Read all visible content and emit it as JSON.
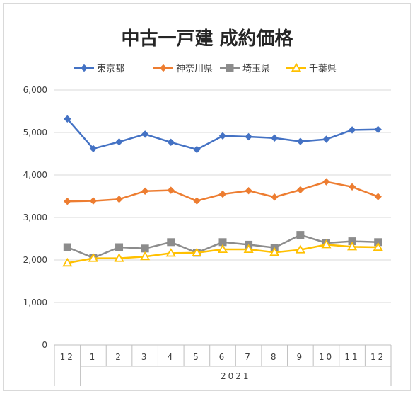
{
  "chart_data": {
    "type": "line",
    "title": "中古一戸建 成約価格",
    "xlabel": "",
    "ylabel": "",
    "categories": [
      "12",
      "1",
      "2",
      "3",
      "4",
      "5",
      "6",
      "7",
      "8",
      "9",
      "10",
      "11",
      "12"
    ],
    "year_group_label": "2021",
    "ylim": [
      0,
      6000
    ],
    "yticks": [
      "0",
      "1,000",
      "2,000",
      "3,000",
      "4,000",
      "5,000",
      "6,000"
    ],
    "ytick_values": [
      0,
      1000,
      2000,
      3000,
      4000,
      5000,
      6000
    ],
    "grid": "vertical",
    "legend_position": "top",
    "series": [
      {
        "name": "東京都",
        "color": "#4472C4",
        "marker": "diamond",
        "values": [
          5320,
          4620,
          4780,
          4960,
          4770,
          4600,
          4920,
          4900,
          4870,
          4790,
          4840,
          5060,
          5070
        ]
      },
      {
        "name": "神奈川県",
        "color": "#ED7D31",
        "marker": "diamond",
        "values": [
          3380,
          3390,
          3430,
          3620,
          3640,
          3390,
          3550,
          3630,
          3480,
          3650,
          3840,
          3720,
          3490
        ]
      },
      {
        "name": "埼玉県",
        "color": "#8C8C8C",
        "marker": "square",
        "values": [
          2300,
          2050,
          2300,
          2270,
          2420,
          2170,
          2420,
          2360,
          2290,
          2590,
          2400,
          2440,
          2420
        ]
      },
      {
        "name": "千葉県",
        "color": "#FFC000",
        "marker": "triangle",
        "values": [
          1930,
          2040,
          2040,
          2080,
          2160,
          2170,
          2250,
          2250,
          2180,
          2240,
          2360,
          2310,
          2300
        ]
      }
    ]
  }
}
